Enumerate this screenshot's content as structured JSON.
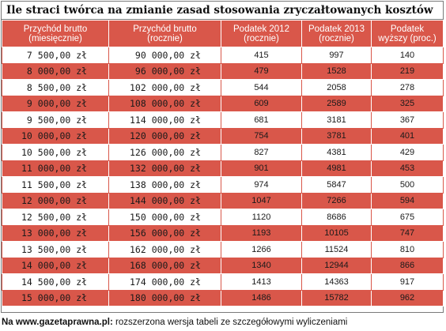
{
  "title": "Ile straci twórca na zmianie zasad stosowania zryczałtowanych kosztów",
  "headers": [
    [
      "Przychód brutto",
      "(miesięcznie)"
    ],
    [
      "Przychód brutto",
      "(rocznie)"
    ],
    [
      "Podatek 2012",
      "(rocznie)"
    ],
    [
      "Podatek 2013",
      "(rocznie)"
    ],
    [
      "Podatek",
      "wyższy (proc.)"
    ]
  ],
  "rows": [
    [
      " 7 500,00 zł",
      " 90 000,00 zł",
      "415",
      "997",
      "140"
    ],
    [
      " 8 000,00 zł",
      " 96 000,00 zł",
      "479",
      "1528",
      "219"
    ],
    [
      " 8 500,00 zł",
      "102 000,00 zł",
      "544",
      "2058",
      "278"
    ],
    [
      " 9 000,00 zł",
      "108 000,00 zł",
      "609",
      "2589",
      "325"
    ],
    [
      " 9 500,00 zł",
      "114 000,00 zł",
      "681",
      "3181",
      "367"
    ],
    [
      "10 000,00 zł",
      "120 000,00 zł",
      "754",
      "3781",
      "401"
    ],
    [
      "10 500,00 zł",
      "126 000,00 zł",
      "827",
      "4381",
      "429"
    ],
    [
      "11 000,00 zł",
      "132 000,00 zł",
      "901",
      "4981",
      "453"
    ],
    [
      "11 500,00 zł",
      "138 000,00 zł",
      "974",
      "5847",
      "500"
    ],
    [
      "12 000,00 zł",
      "144 000,00 zł",
      "1047",
      "7266",
      "594"
    ],
    [
      "12 500,00 zł",
      "150 000,00 zł",
      "1120",
      "8686",
      "675"
    ],
    [
      "13 000,00 zł",
      "156 000,00 zł",
      "1193",
      "10105",
      "747"
    ],
    [
      "13 500,00 zł",
      "162 000,00 zł",
      "1266",
      "11524",
      "810"
    ],
    [
      "14 000,00 zł",
      "168 000,00 zł",
      "1340",
      "12944",
      "866"
    ],
    [
      "14 500,00 zł",
      "174 000,00 zł",
      "1413",
      "14363",
      "917"
    ],
    [
      "15 000,00 zł",
      "180 000,00 zł",
      "1486",
      "15782",
      "962"
    ]
  ],
  "footer": {
    "source": "Na www.gazetaprawna.pl:",
    "note": " rozszerzona wersja tabeli ze szczegółowymi wyliczeniami"
  },
  "colors": {
    "accent": "#d9574a",
    "header_text": "#ffffff"
  }
}
